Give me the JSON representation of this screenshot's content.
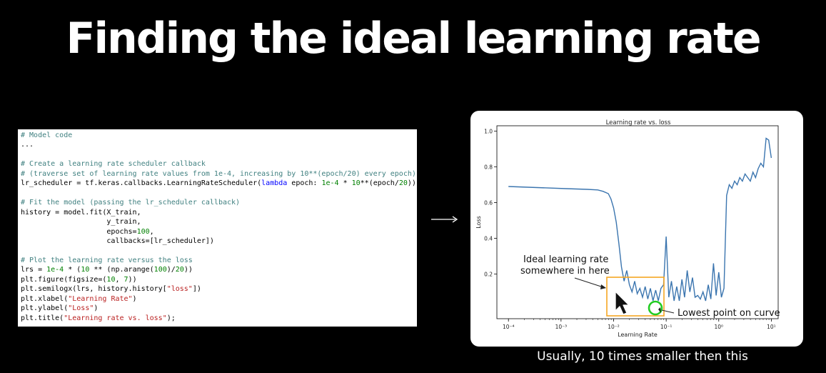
{
  "slide": {
    "title": "Finding the ideal learning rate",
    "caption": "Usually, 10 times smaller then this"
  },
  "code": {
    "lines": [
      "# Model code",
      "...",
      "",
      "# Create a learning rate scheduler callback",
      "# (traverse set of learning rate values from 1e-4, increasing by 10**(epoch/20) every epoch)",
      "lr_scheduler = tf.keras.callbacks.LearningRateScheduler(lambda epoch: 1e-4 * 10**(epoch/20))",
      "",
      "# Fit the model (passing the lr_scheduler callback)",
      "history = model.fit(X_train,",
      "                    y_train,",
      "                    epochs=100,",
      "                    callbacks=[lr_scheduler])",
      "",
      "# Plot the learning rate versus the loss",
      "lrs = 1e-4 * (10 ** (np.arange(100)/20))",
      "plt.figure(figsize=(10, 7))",
      "plt.semilogx(lrs, history.history[\"loss\"])",
      "plt.xlabel(\"Learning Rate\")",
      "plt.ylabel(\"Loss\")",
      "plt.title(\"Learning rate vs. loss\");"
    ]
  },
  "annotations": {
    "ideal_label_line1": "Ideal learning rate",
    "ideal_label_line2": "somewhere in here",
    "lowest_label": "Lowest point on curve"
  },
  "colors": {
    "line": "#3b75af",
    "highlight_box": "#f5a623",
    "lowest_circle": "#22cc22"
  },
  "icons": {
    "arrow": "right-arrow-icon",
    "cursor": "mouse-pointer-icon"
  },
  "chart_data": {
    "type": "line",
    "title": "Learning rate vs. loss",
    "xlabel": "Learning Rate",
    "ylabel": "Loss",
    "xscale": "log",
    "xlim": [
      0.0001,
      10
    ],
    "ylim": [
      0.0,
      1.0
    ],
    "xticks": [
      "10⁻⁴",
      "10⁻³",
      "10⁻²",
      "10⁻¹",
      "10⁰",
      "10¹"
    ],
    "yticks": [
      "0.2",
      "0.4",
      "0.6",
      "0.8",
      "1.0"
    ],
    "grid": false,
    "series": [
      {
        "name": "",
        "x": [
          0.0001,
          0.000355,
          0.001259,
          0.003162,
          0.005012,
          0.00631,
          0.007943,
          0.008913,
          0.01,
          0.01122,
          0.01259,
          0.01413,
          0.01585,
          0.01778,
          0.01995,
          0.02239,
          0.02512,
          0.02818,
          0.03162,
          0.03548,
          0.03981,
          0.04467,
          0.05012,
          0.05623,
          0.0631,
          0.0708,
          0.07943,
          0.08913,
          0.1,
          0.1122,
          0.1259,
          0.1413,
          0.1585,
          0.1778,
          0.1995,
          0.2239,
          0.2512,
          0.2818,
          0.3162,
          0.3548,
          0.3981,
          0.4467,
          0.5012,
          0.5623,
          0.631,
          0.708,
          0.7943,
          0.8913,
          1.0,
          1.122,
          1.259,
          1.413,
          1.585,
          1.778,
          1.995,
          2.239,
          2.512,
          2.818,
          3.162,
          3.548,
          3.981,
          4.467,
          5.012,
          5.623,
          6.31,
          7.08,
          7.943,
          8.913,
          10.0
        ],
        "y": [
          0.69,
          0.684,
          0.678,
          0.674,
          0.671,
          0.663,
          0.65,
          0.62,
          0.57,
          0.49,
          0.37,
          0.24,
          0.16,
          0.22,
          0.14,
          0.1,
          0.16,
          0.09,
          0.12,
          0.07,
          0.13,
          0.06,
          0.12,
          0.05,
          0.11,
          0.05,
          0.12,
          0.14,
          0.41,
          0.07,
          0.16,
          0.05,
          0.13,
          0.05,
          0.17,
          0.07,
          0.22,
          0.1,
          0.18,
          0.07,
          0.08,
          0.06,
          0.1,
          0.05,
          0.14,
          0.06,
          0.26,
          0.08,
          0.21,
          0.07,
          0.12,
          0.64,
          0.7,
          0.68,
          0.72,
          0.7,
          0.74,
          0.72,
          0.76,
          0.74,
          0.72,
          0.77,
          0.74,
          0.79,
          0.82,
          0.8,
          0.96,
          0.95,
          0.85
        ]
      }
    ]
  }
}
